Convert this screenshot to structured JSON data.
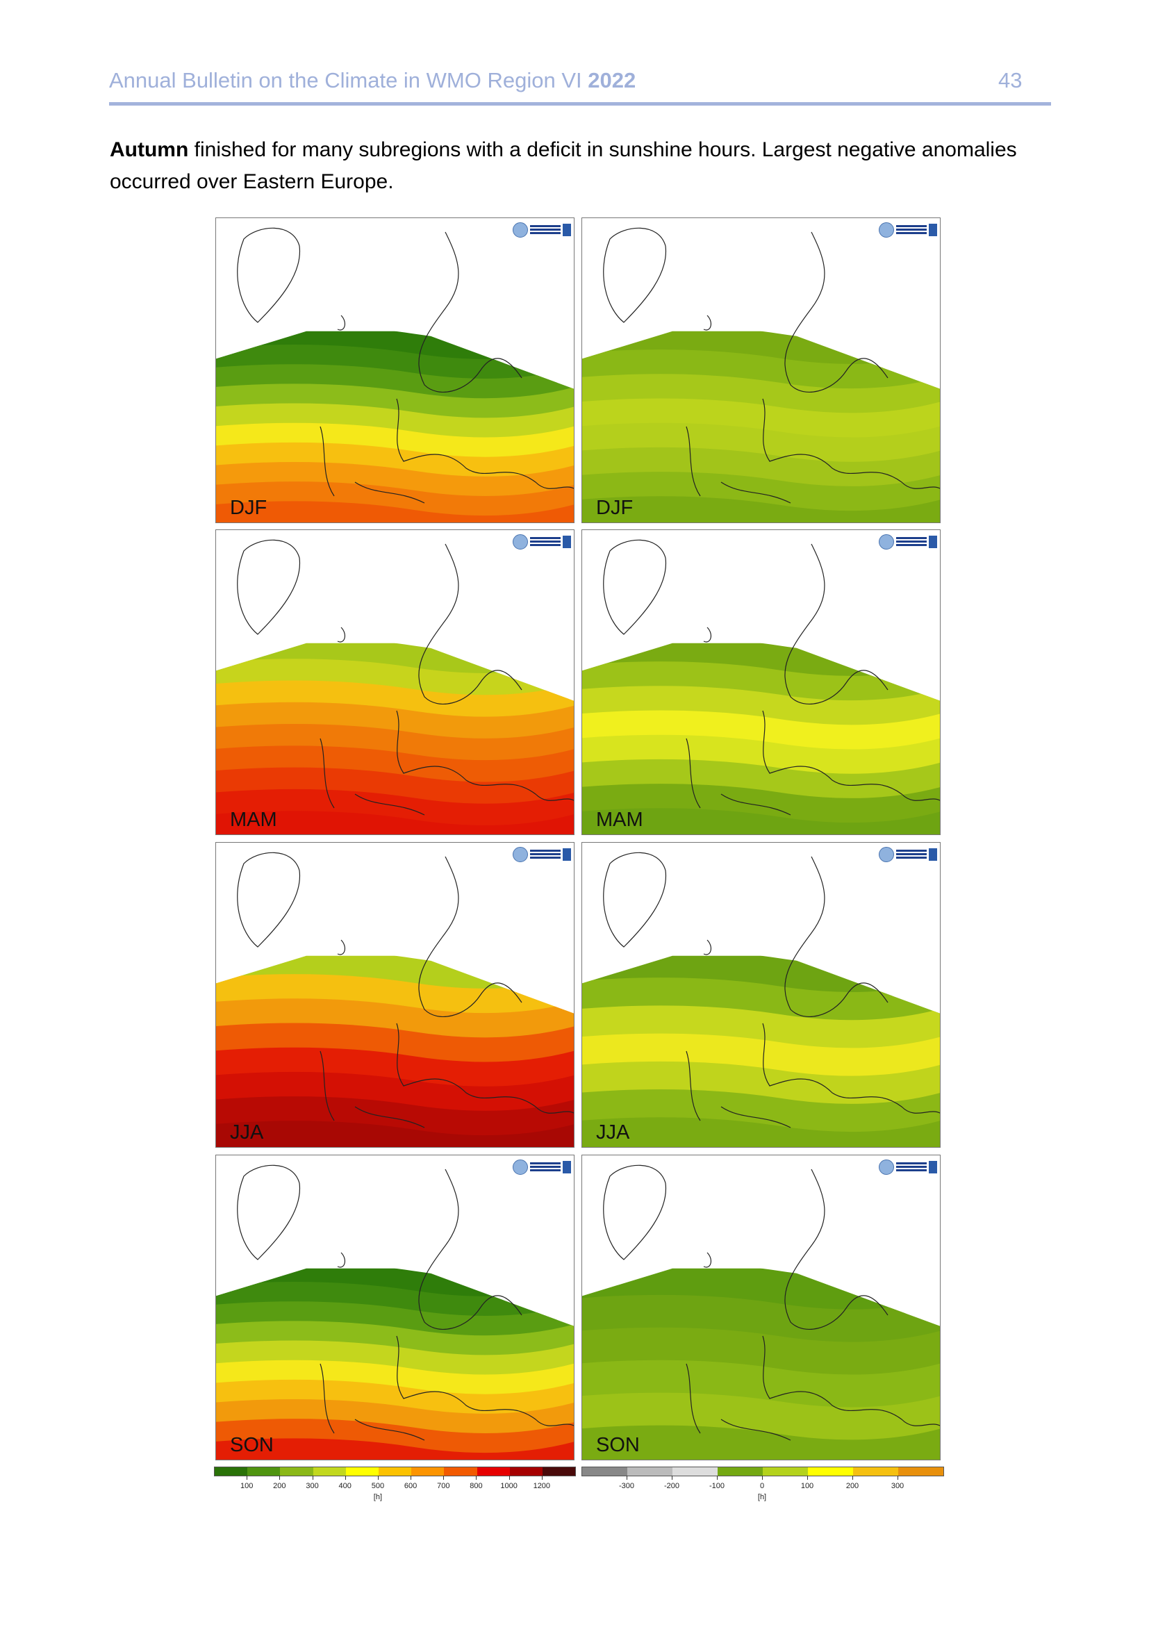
{
  "header": {
    "title": "Annual Bulletin on the Climate in WMO Region VI",
    "year": "2022",
    "page_number": "43"
  },
  "paragraph": {
    "bold": "Autumn",
    "text": " finished for many subregions with a deficit in sunshine hours. Largest negative anomalies occurred over Eastern Europe."
  },
  "logo_text": "WMO RA VI RCC Network",
  "panels": [
    {
      "season": "DJF",
      "kind": "absolute",
      "bands": [
        "#2f7d0a",
        "#3f8a0e",
        "#5a9d12",
        "#8cbc1a",
        "#c4d61e",
        "#f5e81a",
        "#f7c010",
        "#f59a0c",
        "#f27a08",
        "#ef5a05"
      ]
    },
    {
      "season": "DJF",
      "kind": "anomaly",
      "bands": [
        "#7aab12",
        "#8ab816",
        "#a6c81a",
        "#bcd41c",
        "#b4cf1c",
        "#a2c41a",
        "#8cb816",
        "#7aab12"
      ]
    },
    {
      "season": "MAM",
      "kind": "absolute",
      "bands": [
        "#a8c81a",
        "#c7d41c",
        "#f5c010",
        "#f29a0c",
        "#f07a08",
        "#ee5c05",
        "#ea3a04",
        "#e41e04",
        "#e01404"
      ]
    },
    {
      "season": "MAM",
      "kind": "anomaly",
      "bands": [
        "#7aab12",
        "#9cc218",
        "#c6d81e",
        "#f0f01e",
        "#d8e41e",
        "#a6c81a",
        "#7aab12",
        "#6ea412"
      ]
    },
    {
      "season": "JJA",
      "kind": "absolute",
      "bands": [
        "#b4cf1c",
        "#f5c010",
        "#f29a0c",
        "#ee5a05",
        "#e41e04",
        "#d41004",
        "#b80a04",
        "#a80804"
      ]
    },
    {
      "season": "JJA",
      "kind": "anomaly",
      "bands": [
        "#6ea412",
        "#8ab816",
        "#c6d81e",
        "#ece81e",
        "#c0d41c",
        "#8cb816",
        "#7aab12"
      ]
    },
    {
      "season": "SON",
      "kind": "absolute",
      "bands": [
        "#2f7d0a",
        "#3f8a0e",
        "#5a9d12",
        "#8cbc1a",
        "#c4d61e",
        "#f5e81a",
        "#f7c010",
        "#f29a0c",
        "#ee5a05",
        "#e41e04"
      ]
    },
    {
      "season": "SON",
      "kind": "anomaly",
      "bands": [
        "#5f9d10",
        "#6ea412",
        "#7aab12",
        "#8ab816",
        "#9cc218",
        "#7aab12"
      ]
    }
  ],
  "legends": [
    {
      "colors": [
        "#2a7208",
        "#4f9410",
        "#8bb818",
        "#c2d81e",
        "#ffff00",
        "#fcc200",
        "#fc9400",
        "#f25a00",
        "#e60000",
        "#a60000",
        "#4a0a0a"
      ],
      "ticks": [
        "100",
        "200",
        "300",
        "400",
        "500",
        "600",
        "700",
        "800",
        "1000",
        "1200"
      ],
      "unit": "[h]"
    },
    {
      "colors": [
        "#888888",
        "#bbbbbb",
        "#dddddd",
        "#74a812",
        "#b4d21c",
        "#ffff00",
        "#f5c010",
        "#e8900c"
      ],
      "ticks": [
        "-300",
        "-200",
        "-100",
        "0",
        "100",
        "200",
        "300"
      ],
      "unit": "[h]"
    }
  ]
}
